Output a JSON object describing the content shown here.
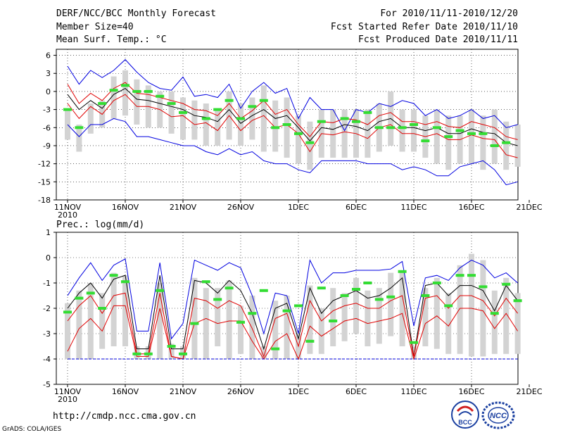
{
  "header": {
    "title": "DERF/NCC/BCC Monthly Forecast",
    "member_size": "Member Size=40",
    "variable": "Mean Surf. Temp.: °C",
    "forecast_range": "For 2010/11/11-2010/12/20",
    "started_date": "Fcst Started Refer Date 2010/11/10",
    "produced_date": "Fcst Produced Date 2010/11/11"
  },
  "footer": {
    "url": "http://cmdp.ncc.cma.gov.cn",
    "grads_credit": "GrADS: COLA/IGES",
    "logo_left_text": "BCC",
    "logo_right_text": "NCC"
  },
  "colors": {
    "ensemble_box": "#d3d3d3",
    "median": "#000000",
    "inner_band": "#e00000",
    "outer_envelope": "#0000e0",
    "reference_marker": "#33dd33",
    "grid": "#000000"
  },
  "chart_data": [
    {
      "type": "line",
      "title": "Mean Surf. Temp.: °C",
      "xlabel": "",
      "ylabel": "",
      "ylim": [
        -18,
        7
      ],
      "yticks": [
        6,
        3,
        0,
        -3,
        -6,
        -9,
        -12,
        -15,
        -18
      ],
      "x_tick_labels": [
        "11NOV\n2010",
        "16NOV",
        "21NOV",
        "26NOV",
        "1DEC",
        "6DEC",
        "11DEC",
        "16DEC",
        "21DEC"
      ],
      "days": [
        0,
        1,
        2,
        3,
        4,
        5,
        6,
        7,
        8,
        9,
        10,
        11,
        12,
        13,
        14,
        15,
        16,
        17,
        18,
        19,
        20,
        21,
        22,
        23,
        24,
        25,
        26,
        27,
        28,
        29,
        30,
        31,
        32,
        33,
        34,
        35,
        36,
        37,
        38,
        39
      ],
      "grid": "dotted",
      "series": [
        {
          "name": "upper envelope",
          "values": [
            4.2,
            1.2,
            3.5,
            2.3,
            3.5,
            5.3,
            3.2,
            1.5,
            0.5,
            0.2,
            2.4,
            -0.8,
            -0.5,
            -1.0,
            1.2,
            -2.8,
            0.0,
            1.5,
            -0.3,
            0.5,
            -4.5,
            -1.0,
            -3.0,
            -3.0,
            -6.5,
            -3.0,
            -3.5,
            -2.0,
            -2.5,
            -1.5,
            -2.0,
            -4.0,
            -3.0,
            -4.5,
            -4.0,
            -3.0,
            -4.5,
            -4.0,
            -6.0,
            -5.5
          ]
        },
        {
          "name": "upper band",
          "values": [
            1.2,
            -2.0,
            -0.3,
            -1.5,
            0.5,
            1.5,
            -0.3,
            -0.5,
            -1.0,
            -1.5,
            -2.0,
            -3.0,
            -3.2,
            -4.0,
            -2.0,
            -4.5,
            -3.2,
            -1.5,
            -3.8,
            -3.0,
            -5.5,
            -7.5,
            -5.0,
            -5.2,
            -4.5,
            -4.7,
            -5.5,
            -4.0,
            -3.5,
            -5.0,
            -5.0,
            -5.5,
            -5.0,
            -5.8,
            -6.0,
            -5.0,
            -5.5,
            -6.0,
            -7.5,
            -8.0
          ]
        },
        {
          "name": "median",
          "values": [
            -0.5,
            -3.0,
            -1.5,
            -2.8,
            -0.5,
            0.5,
            -1.3,
            -1.5,
            -2.0,
            -2.5,
            -3.0,
            -4.0,
            -4.3,
            -5.0,
            -3.0,
            -5.3,
            -4.0,
            -3.0,
            -4.5,
            -4.0,
            -6.0,
            -8.2,
            -6.0,
            -6.3,
            -5.5,
            -5.8,
            -6.5,
            -5.0,
            -4.5,
            -6.0,
            -6.0,
            -6.5,
            -6.0,
            -7.0,
            -7.0,
            -6.2,
            -6.8,
            -7.0,
            -8.5,
            -9.0
          ]
        },
        {
          "name": "lower band",
          "values": [
            -2.0,
            -4.5,
            -2.5,
            -3.8,
            -1.5,
            -0.5,
            -2.5,
            -2.5,
            -3.0,
            -4.2,
            -4.0,
            -5.5,
            -5.2,
            -6.5,
            -4.0,
            -6.5,
            -4.8,
            -4.0,
            -6.0,
            -5.5,
            -7.0,
            -10.0,
            -7.0,
            -7.2,
            -6.7,
            -7.0,
            -7.8,
            -6.0,
            -5.5,
            -7.0,
            -7.0,
            -7.5,
            -7.0,
            -8.0,
            -8.0,
            -7.2,
            -7.8,
            -8.0,
            -10.5,
            -11.0
          ]
        },
        {
          "name": "lower envelope",
          "values": [
            -5.5,
            -7.5,
            -5.5,
            -5.5,
            -4.5,
            -5.0,
            -7.5,
            -7.5,
            -8.0,
            -8.5,
            -9.0,
            -9.0,
            -10.0,
            -10.5,
            -9.5,
            -10.5,
            -10.0,
            -11.5,
            -12.0,
            -12.0,
            -13.0,
            -13.5,
            -11.5,
            -11.5,
            -11.5,
            -11.5,
            -12.0,
            -12.0,
            -12.0,
            -13.0,
            -12.5,
            -13.0,
            -14.0,
            -14.0,
            -12.5,
            -12.0,
            -11.5,
            -13.0,
            -15.5,
            -15.0
          ]
        }
      ],
      "box_ranges": [
        [
          -8,
          -3
        ],
        [
          -10,
          -5.5
        ],
        [
          -7,
          -2
        ],
        [
          -6,
          -1.5
        ],
        [
          -4.5,
          2.5
        ],
        [
          -4,
          3.5
        ],
        [
          -5.5,
          2
        ],
        [
          -6,
          1
        ],
        [
          -6,
          0
        ],
        [
          -7,
          0
        ],
        [
          -8,
          -1
        ],
        [
          -8,
          -1.5
        ],
        [
          -9,
          -2
        ],
        [
          -9,
          -3
        ],
        [
          -8,
          0
        ],
        [
          -9,
          -2
        ],
        [
          -8,
          -1
        ],
        [
          -10,
          1
        ],
        [
          -10,
          -1.5
        ],
        [
          -11,
          -1
        ],
        [
          -12,
          -4
        ],
        [
          -13,
          -5
        ],
        [
          -11,
          -3
        ],
        [
          -11,
          -3
        ],
        [
          -11,
          -3
        ],
        [
          -11,
          -3
        ],
        [
          -11,
          -3
        ],
        [
          -10,
          -2
        ],
        [
          -9,
          0
        ],
        [
          -10,
          -3
        ],
        [
          -10,
          -3
        ],
        [
          -11,
          -4
        ],
        [
          -12,
          -3
        ],
        [
          -13,
          -4
        ],
        [
          -12,
          -4
        ],
        [
          -12,
          -3
        ],
        [
          -13,
          -4
        ],
        [
          -12,
          -3
        ],
        [
          -13,
          -5
        ],
        [
          -12.5,
          -5.5
        ]
      ],
      "reference_markers": [
        [
          0,
          -3.0
        ],
        [
          1,
          -6.0
        ],
        [
          3,
          -2.0
        ],
        [
          4,
          0.2
        ],
        [
          5,
          1.0
        ],
        [
          6,
          0.0
        ],
        [
          7,
          0.0
        ],
        [
          8,
          -0.8
        ],
        [
          9,
          -2.0
        ],
        [
          10,
          -3.5
        ],
        [
          12,
          -4.5
        ],
        [
          13,
          -3.0
        ],
        [
          14,
          -1.5
        ],
        [
          15,
          -4.5
        ],
        [
          16,
          -2.5
        ],
        [
          17,
          -1.5
        ],
        [
          18,
          -6.0
        ],
        [
          19,
          -5.5
        ],
        [
          20,
          -7.0
        ],
        [
          21,
          -8.5
        ],
        [
          22,
          -5.0
        ],
        [
          24,
          -4.5
        ],
        [
          25,
          -5.0
        ],
        [
          26,
          -3.5
        ],
        [
          27,
          -6.0
        ],
        [
          28,
          -6.0
        ],
        [
          29,
          -6.0
        ],
        [
          30,
          -5.5
        ],
        [
          31,
          -8.2
        ],
        [
          32,
          -6.0
        ],
        [
          33,
          -7.5
        ],
        [
          34,
          -6.5
        ],
        [
          35,
          -7.0
        ],
        [
          36,
          -7.0
        ],
        [
          37,
          -9.0
        ],
        [
          38,
          -8.5
        ]
      ]
    },
    {
      "type": "line",
      "title": "Prec.: log(mm/d)",
      "xlabel": "",
      "ylabel": "",
      "ylim": [
        -5,
        1
      ],
      "yticks": [
        1,
        0,
        -1,
        -2,
        -3,
        -4,
        -5
      ],
      "x_tick_labels": [
        "11NOV\n2010",
        "16NOV",
        "21NOV",
        "26NOV",
        "1DEC",
        "6DEC",
        "11DEC",
        "16DEC",
        "21DEC"
      ],
      "days": [
        0,
        1,
        2,
        3,
        4,
        5,
        6,
        7,
        8,
        9,
        10,
        11,
        12,
        13,
        14,
        15,
        16,
        17,
        18,
        19,
        20,
        21,
        22,
        23,
        24,
        25,
        26,
        27,
        28,
        29,
        30,
        31,
        32,
        33,
        34,
        35,
        36,
        37,
        38,
        39
      ],
      "grid": "dotted",
      "series": [
        {
          "name": "upper envelope",
          "values": [
            -1.5,
            -0.8,
            -0.2,
            -0.9,
            -0.3,
            -0.05,
            -2.9,
            -2.9,
            -0.2,
            -3.2,
            -2.6,
            -0.1,
            -0.3,
            -0.5,
            -0.2,
            -0.4,
            -1.5,
            -3.0,
            -1.4,
            -1.5,
            -3.0,
            -0.1,
            -1.0,
            -0.6,
            -0.6,
            -0.5,
            -0.5,
            -0.5,
            -0.45,
            -0.15,
            -2.7,
            -0.8,
            -0.7,
            -0.9,
            -0.4,
            -0.1,
            -0.3,
            -0.8,
            -0.6,
            -1.0
          ]
        },
        {
          "name": "median",
          "values": [
            -2.0,
            -1.4,
            -1.0,
            -1.6,
            -0.85,
            -0.7,
            -3.6,
            -3.6,
            -0.7,
            -3.6,
            -3.6,
            -0.9,
            -1.0,
            -1.4,
            -0.9,
            -1.3,
            -2.2,
            -3.6,
            -2.0,
            -1.8,
            -3.2,
            -1.2,
            -2.2,
            -1.7,
            -1.5,
            -1.3,
            -1.6,
            -1.5,
            -1.2,
            -0.8,
            -3.9,
            -1.1,
            -1.0,
            -1.5,
            -1.1,
            -1.1,
            -1.3,
            -2.1,
            -1.1,
            -1.7
          ]
        },
        {
          "name": "upper band",
          "values": [
            -2.5,
            -1.9,
            -1.5,
            -2.2,
            -1.5,
            -1.4,
            -3.8,
            -3.8,
            -1.4,
            -3.9,
            -4.0,
            -1.6,
            -1.7,
            -2.0,
            -1.7,
            -1.9,
            -2.8,
            -3.9,
            -2.4,
            -2.2,
            -3.5,
            -1.7,
            -2.5,
            -2.1,
            -1.9,
            -1.8,
            -2.0,
            -2.0,
            -1.7,
            -1.5,
            -3.9,
            -1.6,
            -1.5,
            -2.0,
            -1.5,
            -1.5,
            -1.7,
            -2.3,
            -1.6,
            -2.2
          ]
        },
        {
          "name": "lower band",
          "values": [
            -3.7,
            -2.8,
            -2.4,
            -2.9,
            -1.9,
            -1.9,
            -3.9,
            -3.9,
            -2.0,
            -3.9,
            -4.0,
            -2.6,
            -2.4,
            -2.6,
            -2.5,
            -2.5,
            -3.3,
            -4.0,
            -3.3,
            -3.0,
            -4.0,
            -2.7,
            -3.1,
            -2.8,
            -2.5,
            -2.4,
            -2.6,
            -2.5,
            -2.4,
            -2.2,
            -4.0,
            -2.6,
            -2.3,
            -2.7,
            -2.0,
            -2.0,
            -2.1,
            -2.8,
            -2.2,
            -2.9
          ]
        },
        {
          "name": "lower envelope",
          "values": [
            -4.0,
            -4.0,
            -4.0,
            -4.0,
            -4.0,
            -4.0,
            -4.0,
            -4.0,
            -4.0,
            -4.0,
            -4.0,
            -4.0,
            -4.0,
            -4.0,
            -4.0,
            -4.0,
            -4.0,
            -4.0,
            -4.0,
            -4.0,
            -4.0,
            -4.0,
            -4.0,
            -4.0,
            -4.0,
            -4.0,
            -4.0,
            -4.0,
            -4.0,
            -4.0,
            -4.0,
            -4.0,
            -4.0,
            -4.0,
            -4.0,
            -4.0,
            -4.0,
            -4.0,
            -4.0,
            -4.0
          ]
        }
      ],
      "box_ranges": [
        [
          -4,
          -1.8
        ],
        [
          -4,
          -1.3
        ],
        [
          -4,
          -1.0
        ],
        [
          -3.6,
          -1.4
        ],
        [
          -3.5,
          -0.6
        ],
        [
          -3.5,
          -0.7
        ],
        [
          -4,
          -3.5
        ],
        [
          -4,
          -3.5
        ],
        [
          -4,
          -1.0
        ],
        [
          -4,
          -3.4
        ],
        [
          -4,
          -3.5
        ],
        [
          -4,
          -0.8
        ],
        [
          -4,
          -1.2
        ],
        [
          -3.5,
          -1.2
        ],
        [
          -4,
          -0.9
        ],
        [
          -3.8,
          -1.9
        ],
        [
          -4,
          -1.5
        ],
        [
          -4,
          -3.5
        ],
        [
          -4,
          -1.7
        ],
        [
          -4,
          -1.5
        ],
        [
          -4,
          -3.0
        ],
        [
          -3.8,
          -1.1
        ],
        [
          -3.8,
          -2.0
        ],
        [
          -3.5,
          -1.2
        ],
        [
          -3.3,
          -1.4
        ],
        [
          -3.0,
          -0.8
        ],
        [
          -3.5,
          -1.3
        ],
        [
          -3.4,
          -1.2
        ],
        [
          -3.1,
          -0.6
        ],
        [
          -3.5,
          -0.6
        ],
        [
          -4,
          -3.5
        ],
        [
          -3.5,
          -1.2
        ],
        [
          -3.6,
          -0.8
        ],
        [
          -3.8,
          -1.4
        ],
        [
          -3.8,
          -0.3
        ],
        [
          -3.9,
          0.15
        ],
        [
          -3.9,
          -0.1
        ],
        [
          -3.8,
          -1.3
        ],
        [
          -3.8,
          -0.8
        ],
        [
          -3.8,
          -1.4
        ]
      ],
      "reference_markers": [
        [
          0,
          -2.15
        ],
        [
          1,
          -1.6
        ],
        [
          2,
          -1.4
        ],
        [
          3,
          -2.0
        ],
        [
          4,
          -0.7
        ],
        [
          5,
          -0.95
        ],
        [
          6,
          -3.8
        ],
        [
          7,
          -3.8
        ],
        [
          8,
          -1.3
        ],
        [
          9,
          -3.5
        ],
        [
          10,
          -3.8
        ],
        [
          11,
          -2.6
        ],
        [
          12,
          -0.95
        ],
        [
          13,
          -1.65
        ],
        [
          14,
          -1.2
        ],
        [
          15,
          -2.55
        ],
        [
          16,
          -2.2
        ],
        [
          17,
          -1.3
        ],
        [
          18,
          -3.6
        ],
        [
          19,
          -2.1
        ],
        [
          20,
          -1.9
        ],
        [
          21,
          -3.3
        ],
        [
          22,
          -1.2
        ],
        [
          23,
          -2.5
        ],
        [
          24,
          -1.5
        ],
        [
          25,
          -1.25
        ],
        [
          26,
          -1.0
        ],
        [
          27,
          -1.65
        ],
        [
          28,
          -1.55
        ],
        [
          29,
          -0.55
        ],
        [
          30,
          -3.35
        ],
        [
          31,
          -1.5
        ],
        [
          32,
          -1.0
        ],
        [
          33,
          -1.9
        ],
        [
          34,
          -0.7
        ],
        [
          35,
          -0.7
        ],
        [
          36,
          -1.15
        ],
        [
          37,
          -2.2
        ],
        [
          38,
          -1.05
        ],
        [
          39,
          -1.7
        ]
      ]
    }
  ]
}
